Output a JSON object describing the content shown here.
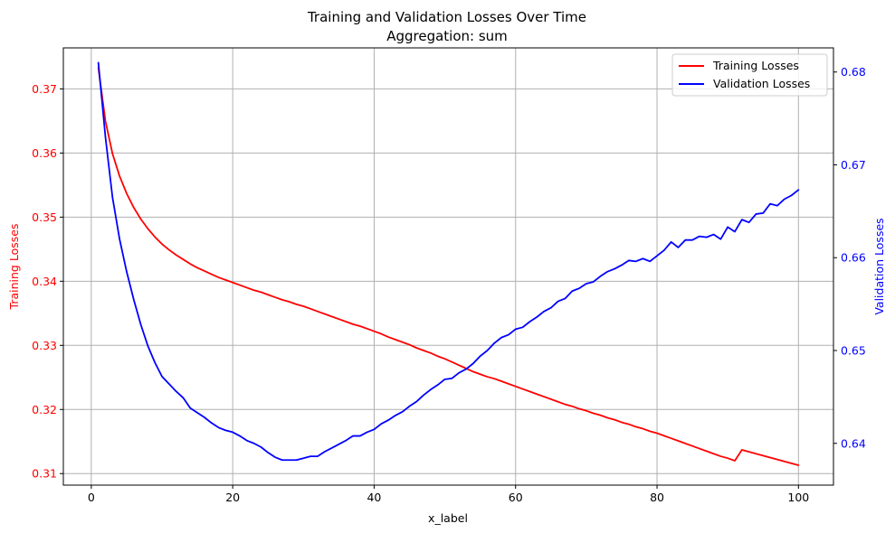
{
  "chart_data": {
    "type": "line",
    "title": "Training and Validation Losses Over Time",
    "subtitle": "Aggregation: sum",
    "xlabel": "x_label",
    "ylabel_left": "Training Losses",
    "ylabel_right": "Validation Losses",
    "xlim": [
      -3.95,
      104.95
    ],
    "ylim_left": [
      0.3082,
      0.3764
    ],
    "ylim_right": [
      0.6355,
      0.6826
    ],
    "xticks": [
      0,
      20,
      40,
      60,
      80,
      100
    ],
    "yticks_left": [
      0.31,
      0.32,
      0.33,
      0.34,
      0.35,
      0.36,
      0.37
    ],
    "yticks_right": [
      0.64,
      0.65,
      0.66,
      0.67,
      0.68
    ],
    "grid": true,
    "legend_position": "top-right",
    "colors": {
      "training": "#ff0000",
      "validation": "#0000ff",
      "grid": "#b0b0b0",
      "axis": "#000000"
    },
    "series": [
      {
        "name": "Training Losses",
        "axis": "left",
        "color": "#ff0000",
        "x": [
          1,
          2,
          3,
          4,
          5,
          6,
          7,
          8,
          9,
          10,
          11,
          12,
          13,
          14,
          15,
          16,
          17,
          18,
          19,
          20,
          21,
          22,
          23,
          24,
          25,
          26,
          27,
          28,
          29,
          30,
          31,
          32,
          33,
          34,
          35,
          36,
          37,
          38,
          39,
          40,
          41,
          42,
          43,
          44,
          45,
          46,
          47,
          48,
          49,
          50,
          51,
          52,
          53,
          54,
          55,
          56,
          57,
          58,
          59,
          60,
          61,
          62,
          63,
          64,
          65,
          66,
          67,
          68,
          69,
          70,
          71,
          72,
          73,
          74,
          75,
          76,
          77,
          78,
          79,
          80,
          81,
          82,
          83,
          84,
          85,
          86,
          87,
          88,
          89,
          90,
          91,
          92,
          93,
          94,
          95,
          96,
          97,
          98,
          99,
          100
        ],
        "values": [
          0.3733,
          0.365,
          0.3599,
          0.3564,
          0.3537,
          0.3515,
          0.3497,
          0.3482,
          0.3469,
          0.3458,
          0.3449,
          0.3441,
          0.3434,
          0.3427,
          0.3421,
          0.3416,
          0.3411,
          0.3406,
          0.3402,
          0.3398,
          0.3394,
          0.339,
          0.3386,
          0.3383,
          0.3379,
          0.3375,
          0.3371,
          0.3368,
          0.3364,
          0.3361,
          0.3357,
          0.3353,
          0.3349,
          0.3345,
          0.3341,
          0.3337,
          0.3333,
          0.333,
          0.3326,
          0.3322,
          0.3318,
          0.3313,
          0.3309,
          0.3305,
          0.3301,
          0.3296,
          0.3292,
          0.3288,
          0.3283,
          0.3279,
          0.3274,
          0.3269,
          0.3264,
          0.3259,
          0.3255,
          0.3251,
          0.3248,
          0.3244,
          0.324,
          0.3236,
          0.3232,
          0.3228,
          0.3224,
          0.322,
          0.3216,
          0.3212,
          0.3208,
          0.3205,
          0.3201,
          0.3198,
          0.3194,
          0.3191,
          0.3187,
          0.3184,
          0.318,
          0.3177,
          0.3173,
          0.317,
          0.3166,
          0.3163,
          0.3159,
          0.3155,
          0.3151,
          0.3147,
          0.3143,
          0.3139,
          0.3135,
          0.3131,
          0.3127,
          0.3124,
          0.312,
          0.3137,
          0.3134,
          0.3131,
          0.3128,
          0.3125,
          0.3122,
          0.3119,
          0.3116,
          0.3113
        ]
      },
      {
        "name": "Validation Losses",
        "axis": "right",
        "color": "#0000ff",
        "x": [
          1,
          2,
          3,
          4,
          5,
          6,
          7,
          8,
          9,
          10,
          11,
          12,
          13,
          14,
          15,
          16,
          17,
          18,
          19,
          20,
          21,
          22,
          23,
          24,
          25,
          26,
          27,
          28,
          29,
          30,
          31,
          32,
          33,
          34,
          35,
          36,
          37,
          38,
          39,
          40,
          41,
          42,
          43,
          44,
          45,
          46,
          47,
          48,
          49,
          50,
          51,
          52,
          53,
          54,
          55,
          56,
          57,
          58,
          59,
          60,
          61,
          62,
          63,
          64,
          65,
          66,
          67,
          68,
          69,
          70,
          71,
          72,
          73,
          74,
          75,
          76,
          77,
          78,
          79,
          80,
          81,
          82,
          83,
          84,
          85,
          86,
          87,
          88,
          89,
          90,
          91,
          92,
          93,
          94,
          95,
          96,
          97,
          98,
          99,
          100
        ],
        "values": [
          0.681,
          0.673,
          0.6665,
          0.662,
          0.6585,
          0.6555,
          0.6528,
          0.6505,
          0.6487,
          0.6472,
          0.6464,
          0.6456,
          0.6449,
          0.6438,
          0.6433,
          0.6428,
          0.6422,
          0.6417,
          0.6414,
          0.6412,
          0.6408,
          0.6403,
          0.64,
          0.6396,
          0.639,
          0.6385,
          0.6382,
          0.6382,
          0.6382,
          0.6384,
          0.6386,
          0.6386,
          0.6391,
          0.6395,
          0.6399,
          0.6403,
          0.6408,
          0.6408,
          0.6412,
          0.6415,
          0.6421,
          0.6425,
          0.643,
          0.6434,
          0.644,
          0.6445,
          0.6452,
          0.6458,
          0.6463,
          0.6469,
          0.647,
          0.6476,
          0.648,
          0.6486,
          0.6494,
          0.65,
          0.6508,
          0.6514,
          0.6517,
          0.6523,
          0.6525,
          0.6531,
          0.6536,
          0.6542,
          0.6546,
          0.6553,
          0.6556,
          0.6564,
          0.6567,
          0.6572,
          0.6574,
          0.658,
          0.6585,
          0.6588,
          0.6592,
          0.6597,
          0.6596,
          0.6599,
          0.6596,
          0.6602,
          0.6608,
          0.6617,
          0.6611,
          0.6619,
          0.6619,
          0.6623,
          0.6622,
          0.6625,
          0.662,
          0.6633,
          0.6628,
          0.6641,
          0.6638,
          0.6647,
          0.6648,
          0.6658,
          0.6656,
          0.6663,
          0.6667,
          0.6673
        ]
      }
    ]
  }
}
